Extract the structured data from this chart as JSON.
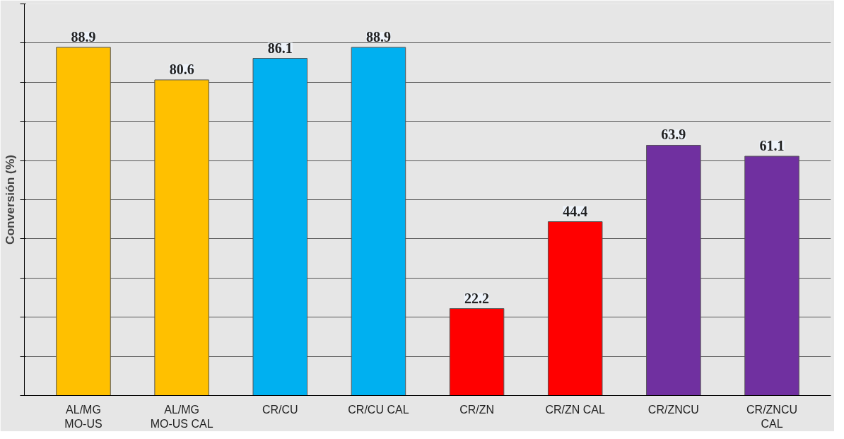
{
  "chart_data": {
    "type": "bar",
    "ylabel": "Conversión (%)",
    "categories": [
      "AL/MG MO-US",
      "AL/MG MO-US CAL",
      "CR/CU",
      "CR/CU CAL",
      "CR/ZN",
      "CR/ZN CAL",
      "CR/ZNCU",
      "CR/ZNCU CAL"
    ],
    "values": [
      88.9,
      80.6,
      86.1,
      88.9,
      22.2,
      44.4,
      63.9,
      61.1
    ],
    "colors": [
      "#ffc000",
      "#ffc000",
      "#00b0f0",
      "#00b0f0",
      "#ff0000",
      "#ff0000",
      "#7030a0",
      "#7030a0"
    ],
    "ylim": [
      0,
      100
    ],
    "yticks": [
      {
        "value": 0,
        "label": null
      },
      {
        "value": 10,
        "label": null
      },
      {
        "value": 20,
        "label": null
      },
      {
        "value": 30,
        "label": null
      },
      {
        "value": 40,
        "label": null
      },
      {
        "value": 50,
        "label": null
      },
      {
        "value": 60,
        "label": null
      },
      {
        "value": 70,
        "label": null
      },
      {
        "value": 80,
        "label": null
      },
      {
        "value": 90,
        "label": null
      },
      {
        "value": 100,
        "label": null
      }
    ],
    "grid": "y",
    "data_labels": true
  }
}
